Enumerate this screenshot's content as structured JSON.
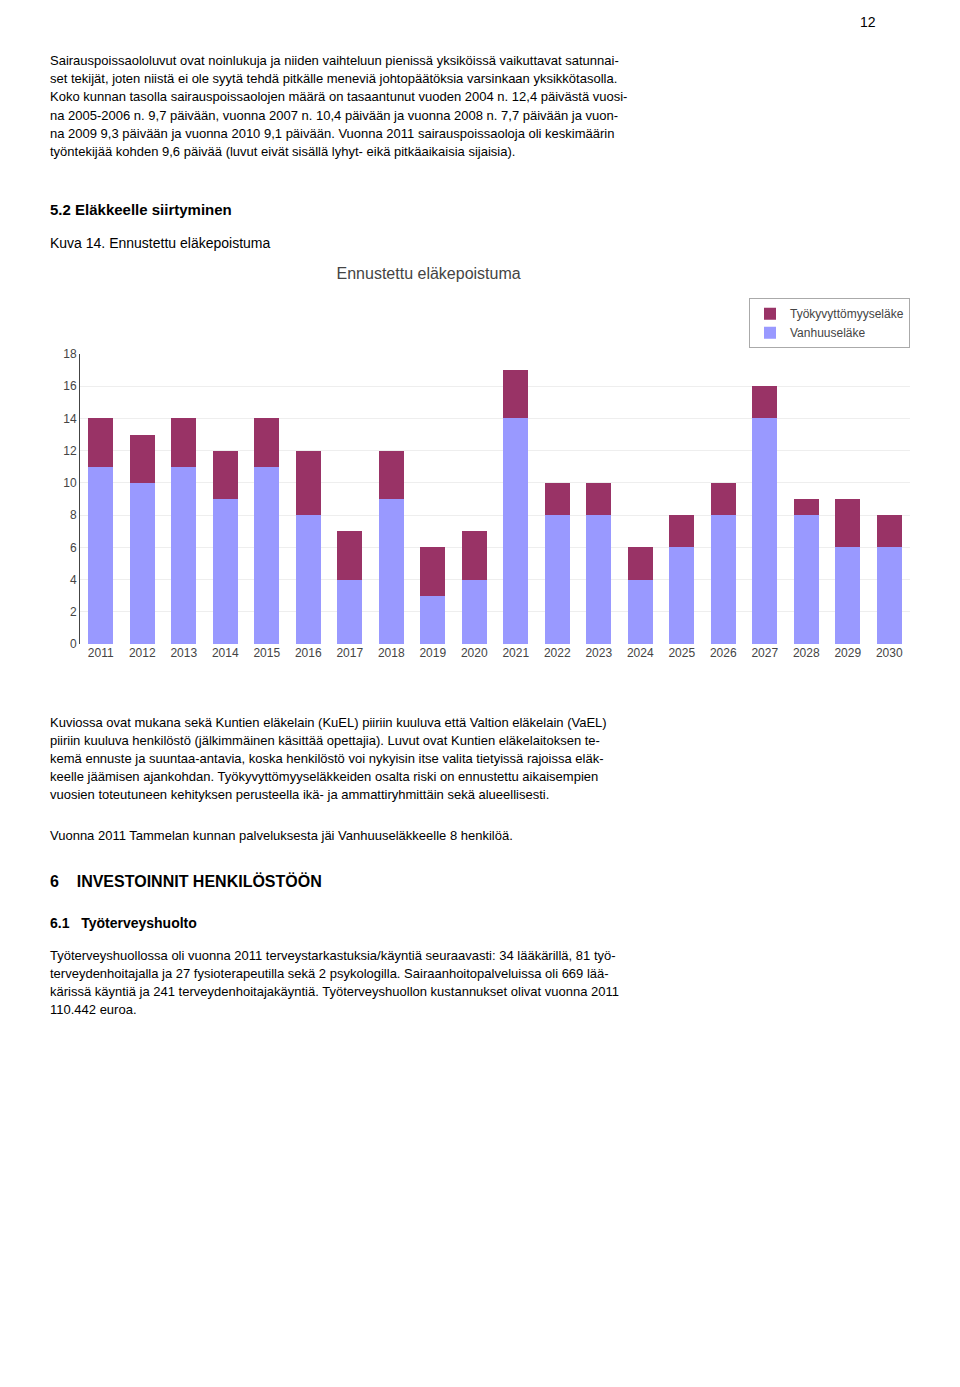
{
  "chart_data": {
    "type": "bar",
    "stacked": true,
    "title": "Ennustettu eläkepoistuma",
    "categories": [
      "2011",
      "2012",
      "2013",
      "2014",
      "2015",
      "2016",
      "2017",
      "2018",
      "2019",
      "2020",
      "2021",
      "2022",
      "2023",
      "2024",
      "2025",
      "2026",
      "2027",
      "2028",
      "2029",
      "2030"
    ],
    "series": [
      {
        "name": "Vanhuuseläke",
        "color": "#9999FF",
        "values": [
          11,
          10,
          11,
          9,
          11,
          8,
          4,
          9,
          3,
          4,
          14,
          8,
          8,
          4,
          6,
          8,
          14,
          8,
          6,
          6
        ]
      },
      {
        "name": "Työkyvyttömyyseläke",
        "color": "#993366",
        "values": [
          3,
          3,
          3,
          3,
          3,
          4,
          3,
          3,
          3,
          3,
          3,
          2,
          2,
          2,
          2,
          2,
          2,
          1,
          3,
          2
        ]
      }
    ],
    "ylim": [
      0,
      18
    ],
    "yticks": [
      0,
      2,
      4,
      6,
      8,
      10,
      12,
      14,
      16,
      18
    ],
    "grid": true,
    "legend": "upper right",
    "annotations": [
      "12",
      "Sairauspoissaololuvut ovat noinlukuja ja niiden vaihteluun pienissä yksiköissä vaikuttavat satunnai-\nset tekijät, joten niistä ei ole syytä tehdä pitkälle meneviä johtopäätöksia varsinkaan yksikkötasolla.\nKoko kunnan tasolla sairauspoissaolojen määrä on tasaantunut vuoden 2004 n. 12,4 päivästä vuosi-\nna 2005-2006 n. 9,7 päivään, vuonna 2007 n. 10,4 päivään ja vuonna 2008 n. 7,7 päivään  ja  vuon-\nna 2009  9,3 päivään ja vuonna 2010  9,1 päivään.  Vuonna 2011 sairauspoissaoloja oli keskimäärin\ntyöntekijää kohden 9,6 päivää (luvut eivät sisällä lyhyt- eikä pitkäaikaisia sijaisia).",
      "5.2 Eläkkeelle siirtyminen",
      "Kuva 14. Ennustettu eläkepoistuma",
      "Kuviossa ovat mukana sekä Kuntien eläkelain (KuEL) piiriin kuuluva että Valtion eläkelain (VaEL)\npiiriin kuuluva henkilöstö (jälkimmäinen käsittää opettajia). Luvut ovat Kuntien eläkelaitoksen te-\nkemä ennuste ja suuntaa-antavia, koska henkilöstö voi nykyisin itse valita tietyissä rajoissa eläk-\nkeelle jäämisen ajankohdan. Työkyvyttömyyseläkkeiden osalta riski on ennustettu aikaisempien\nvuosien toteutuneen kehityksen perusteella ikä- ja ammattiryhmittäin sekä alueellisesti.",
      "Vuonna 2011 Tammelan kunnan palveluksesta jäi Vanhuuseläkkeelle 8 henkilöä.",
      "6    INVESTOINNIT HENKILÖSTÖÖN",
      "6.1   Työterveyshuolto",
      "Työterveyshuollossa oli vuonna 2011 terveystarkastuksia/käyntiä seuraavasti: 34 lääkärillä, 81 työ-\nterveydenhoitajalla ja 27 fysioterapeutilla sekä 2 psykologilla. Sairaanhoitopalveluissa oli 669 lää-\nkärissä käyntiä ja 241 terveydenhoitajakäyntiä. Työterveyshuollon kustannukset olivat vuonna 2011\n110.442 euroa."
    ]
  }
}
